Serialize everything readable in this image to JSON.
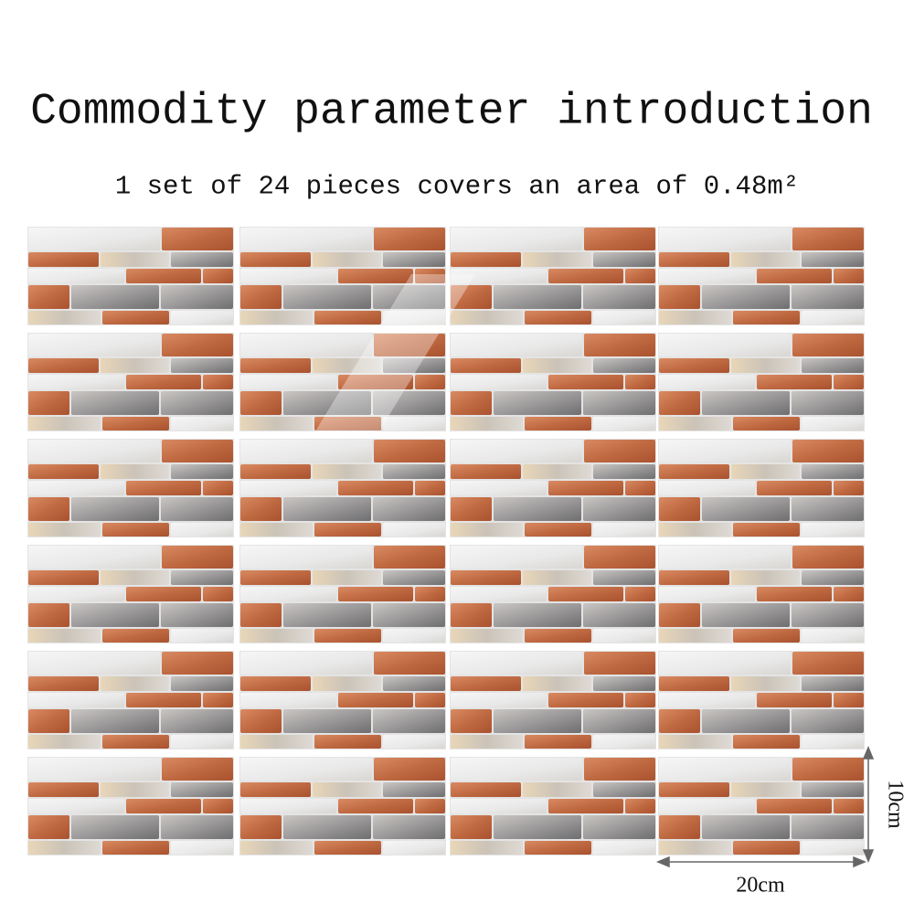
{
  "header": {
    "title": "Commodity parameter introduction",
    "subtitle": "1 set of 24 pieces covers an area of 0.48m²"
  },
  "dimensions": {
    "height": "10cm",
    "width": "20cm"
  }
}
